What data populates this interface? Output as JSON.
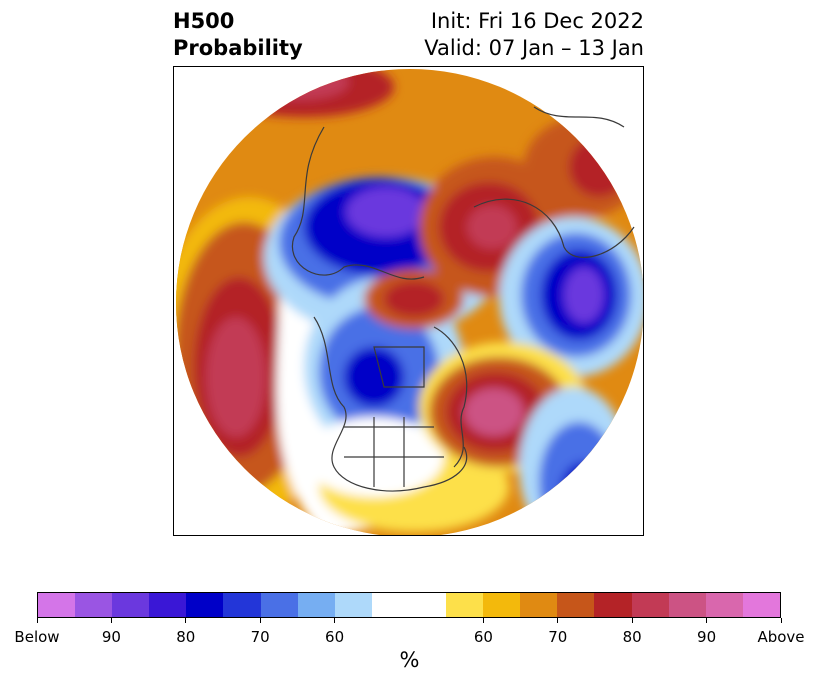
{
  "title": {
    "left_line1": "H500",
    "left_line2": "Probability",
    "right_line1": "Init: Fri 16 Dec 2022",
    "right_line2": "Valid: 07 Jan – 13 Jan"
  },
  "colorbar": {
    "unit": "%",
    "below_colors": [
      "#d475e8",
      "#9a55e3",
      "#6b38de",
      "#3a17d6",
      "#0000c8",
      "#2336d8",
      "#4a70e6",
      "#76aef2",
      "#aed9fa"
    ],
    "neutral_color": "#ffffff",
    "above_colors": [
      "#fde04a",
      "#f3b90c",
      "#e08a12",
      "#c6561a",
      "#b42327",
      "#c23a55",
      "#cc5384",
      "#d967ad",
      "#e377dc"
    ],
    "tick_labels": [
      "Below",
      "90",
      "80",
      "70",
      "60",
      "60",
      "70",
      "80",
      "90",
      "Above"
    ]
  }
}
